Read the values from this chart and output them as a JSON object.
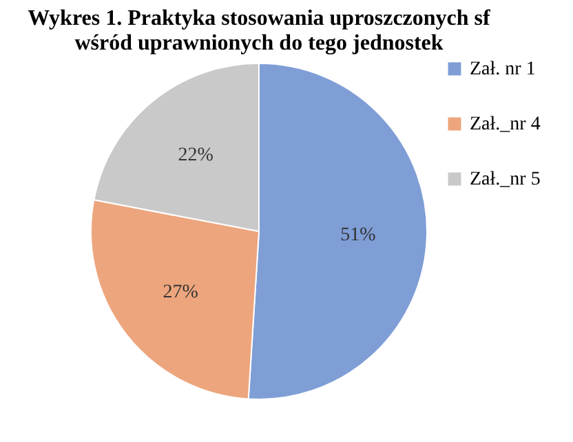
{
  "chart_data": {
    "type": "pie",
    "title": "Wykres 1. Praktyka stosowania uproszczonych sf wśród uprawnionych do tego jednostek",
    "categories": [
      "Zał. nr 1",
      "Zał._nr 4",
      "Zał._nr 5"
    ],
    "values": [
      51,
      27,
      22
    ],
    "value_labels": [
      "51%",
      "27%",
      "22%"
    ],
    "colors": [
      "#7f9ed6",
      "#eda57d",
      "#c9c9c9"
    ],
    "legend": "right"
  }
}
